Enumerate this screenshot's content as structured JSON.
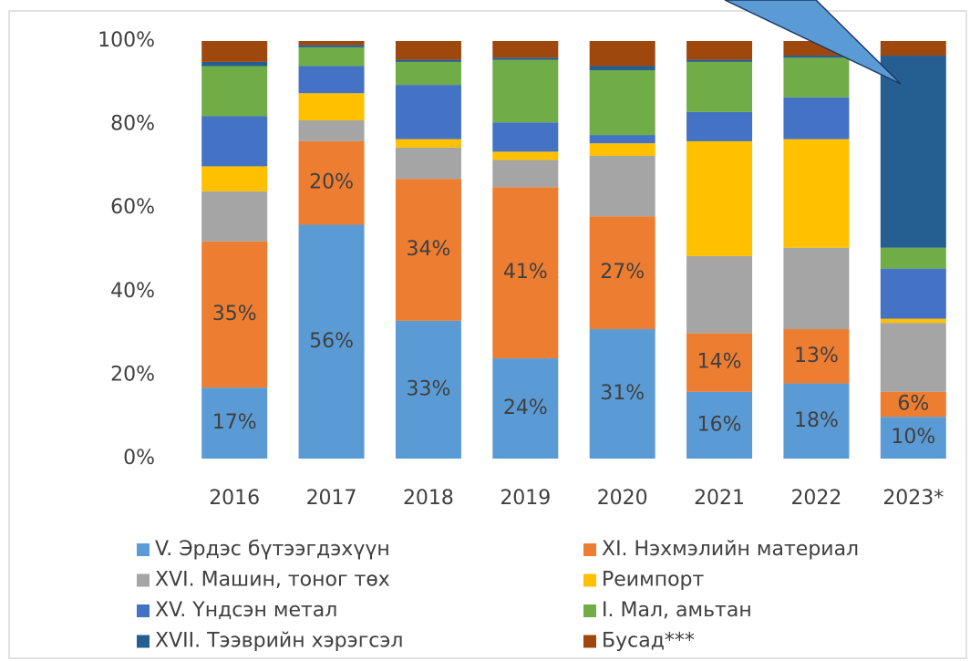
{
  "chart_data": {
    "type": "stacked_bar_percent",
    "categories": [
      "2016",
      "2017",
      "2018",
      "2019",
      "2020",
      "2021",
      "2022",
      "2023*"
    ],
    "ylim": [
      0,
      100
    ],
    "yticks": [
      {
        "value": 0,
        "label": "0%"
      },
      {
        "value": 20,
        "label": "20%"
      },
      {
        "value": 40,
        "label": "40%"
      },
      {
        "value": 60,
        "label": "60%"
      },
      {
        "value": 80,
        "label": "80%"
      },
      {
        "value": 100,
        "label": "100%"
      }
    ],
    "grid": false,
    "legend": "bottom",
    "series": [
      {
        "name": "V. Эрдэс бүтээгдэхүүн",
        "color": "#5b9bd5",
        "values": [
          17,
          56,
          33,
          24,
          31,
          16,
          18,
          10
        ],
        "value_labels": [
          "17%",
          "56%",
          "33%",
          "24%",
          "31%",
          "16%",
          "18%",
          "10%"
        ]
      },
      {
        "name": "XI. Нэхмэлийн материал",
        "color": "#ed7d31",
        "values": [
          35,
          20,
          34,
          41,
          27,
          14,
          13,
          6
        ],
        "value_labels": [
          "35%",
          "20%",
          "34%",
          "41%",
          "27%",
          "14%",
          "13%",
          "6%"
        ]
      },
      {
        "name": "XVI. Машин, тоног төх",
        "color": "#a5a5a5",
        "values": [
          12,
          5,
          7.5,
          6.5,
          14.5,
          18.5,
          19.5,
          16.5
        ]
      },
      {
        "name": "Реимпорт",
        "color": "#ffc000",
        "values": [
          6,
          6.5,
          2,
          2,
          3,
          27.5,
          26,
          1
        ]
      },
      {
        "name": "XV. Үндсэн метал",
        "color": "#4472c4",
        "values": [
          12,
          6.5,
          13,
          7,
          2,
          7,
          10,
          12
        ]
      },
      {
        "name": "I. Мал, амьтан",
        "color": "#70ad47",
        "values": [
          12,
          4.5,
          5.5,
          15,
          15.5,
          12,
          9.5,
          5
        ]
      },
      {
        "name": "XVII. Тээврийн хэрэгсэл",
        "color": "#255e91",
        "values": [
          1,
          0.5,
          0.5,
          0.5,
          1,
          0.5,
          0.5,
          46
        ]
      },
      {
        "name": "Бусад***",
        "color": "#9e480e",
        "values": [
          5,
          1,
          4.5,
          4,
          6,
          4.5,
          3.5,
          3.5
        ]
      }
    ]
  }
}
